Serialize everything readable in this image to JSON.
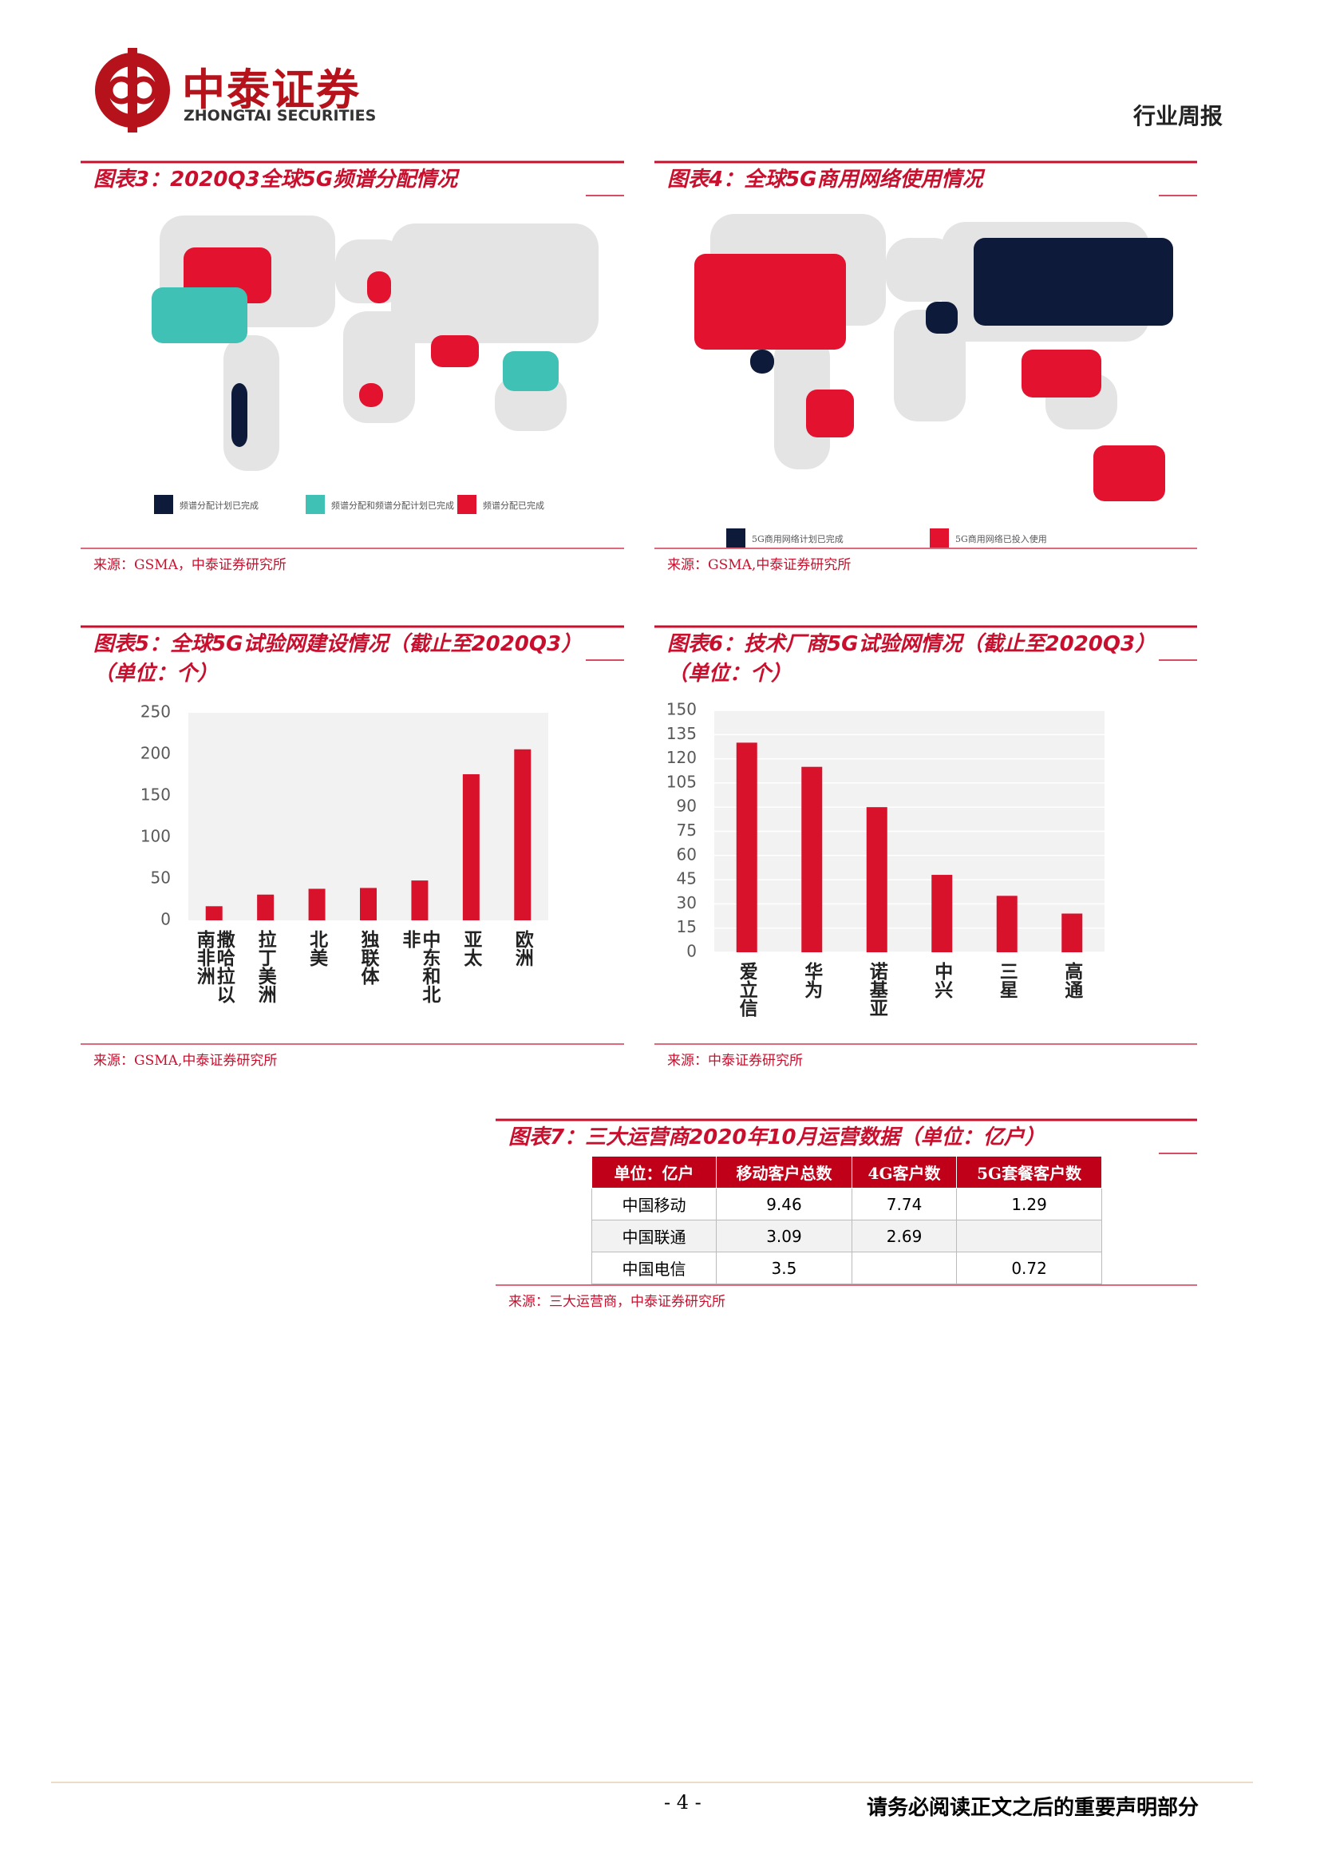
{
  "header": {
    "logo_cn": "中泰证券",
    "logo_en": "ZHONGTAI SECURITIES",
    "report_type": "行业周报"
  },
  "figures": [
    {
      "title": "图表3：2020Q3全球5G频谱分配情况",
      "legend": [
        {
          "label": "频谱分配计划已完成",
          "color": "#0d1a3a"
        },
        {
          "label": "频谱分配和频谱分配计划已完成",
          "color": "#3fc1b6"
        },
        {
          "label": "频谱分配已完成",
          "color": "#e3122f"
        }
      ],
      "source": "来源：GSMA，中泰证券研究所"
    },
    {
      "title": "图表4：全球5G商用网络使用情况",
      "legend": [
        {
          "label": "5G商用网络计划已完成",
          "color": "#0d1a3a"
        },
        {
          "label": "5G商用网络已投入使用",
          "color": "#e3122f"
        }
      ],
      "source": "来源：GSMA,中泰证券研究所"
    },
    {
      "title": "图表5：全球5G试验网建设情况（截止至2020Q3）（单位：个）",
      "source": "来源：GSMA,中泰证券研究所"
    },
    {
      "title": "图表6：技术厂商5G试验网情况（截止至2020Q3）（单位：个）",
      "source": "来源：中泰证券研究所"
    },
    {
      "title": "图表7：三大运营商2020年10月运营数据（单位：亿户）",
      "source": "来源：三大运营商，中泰证券研究所"
    }
  ],
  "chart_data": [
    {
      "type": "bar",
      "categories": [
        "撒哈拉以南非洲",
        "拉丁美洲",
        "北美",
        "独联体",
        "中东和北非",
        "亚太",
        "欧洲"
      ],
      "values": [
        17,
        31,
        38,
        39,
        48,
        176,
        206
      ],
      "color": "#d9122c",
      "ylim": [
        0,
        250
      ],
      "yticks": [
        0,
        50,
        100,
        150,
        200,
        250
      ],
      "grid": false
    },
    {
      "type": "bar",
      "categories": [
        "爱立信",
        "华为",
        "诺基亚",
        "中兴",
        "三星",
        "高通"
      ],
      "values": [
        130,
        115,
        90,
        48,
        35,
        24
      ],
      "color": "#d9122c",
      "ylim": [
        0,
        150
      ],
      "yticks": [
        0,
        15,
        30,
        45,
        60,
        75,
        90,
        105,
        120,
        135,
        150
      ],
      "grid": true
    }
  ],
  "table": {
    "header": [
      "单位：亿户",
      "移动客户总数",
      "4G客户数",
      "5G套餐客户数"
    ],
    "rows": [
      [
        "中国移动",
        9.46,
        7.74,
        1.29
      ],
      [
        "中国联通",
        3.09,
        2.69,
        null
      ],
      [
        "中国电信",
        3.5,
        null,
        0.72
      ]
    ]
  },
  "footer": {
    "page": "- 4 -",
    "notice": "请务必阅读正文之后的重要声明部分"
  }
}
